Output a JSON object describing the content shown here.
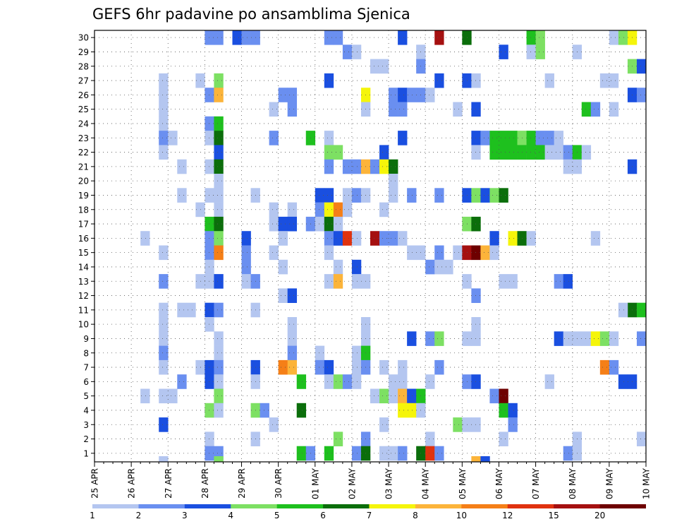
{
  "chart_data": {
    "type": "heatmap",
    "title": "GEFS 6hr padavine po ansamblima Sjenica",
    "xlabel": "",
    "ylabel": "",
    "x_ticks": [
      "25 APR",
      "26 APR",
      "27 APR",
      "28 APR",
      "29 APR",
      "30 APR",
      "01 MAY",
      "02 MAY",
      "03 MAY",
      "04 MAY",
      "05 MAY",
      "06 MAY",
      "07 MAY",
      "08 MAY",
      "09 MAY",
      "10 MAY"
    ],
    "x_range_6h_steps": [
      0,
      60
    ],
    "y_ticks": [
      1,
      2,
      3,
      4,
      5,
      6,
      7,
      8,
      9,
      10,
      11,
      12,
      13,
      14,
      15,
      16,
      17,
      18,
      19,
      20,
      21,
      22,
      23,
      24,
      25,
      26,
      27,
      28,
      29,
      30
    ],
    "y_range": [
      0.5,
      30.5
    ],
    "grid": true,
    "colorbar": {
      "levels": [
        "1",
        "2",
        "3",
        "4",
        "5",
        "6",
        "7",
        "8",
        "10",
        "12",
        "15",
        "20"
      ],
      "colors": [
        "#b4c6f0",
        "#6a8ff0",
        "#1a4fe0",
        "#7de063",
        "#1ec01e",
        "#0b6e0b",
        "#f5f50a",
        "#fcb43a",
        "#f57f17",
        "#e0320f",
        "#a51010",
        "#6e0000"
      ],
      "placement": "bottom"
    },
    "cells": [
      [
        30,
        13,
        2
      ],
      [
        30,
        14,
        2
      ],
      [
        30,
        16,
        3
      ],
      [
        30,
        17,
        2
      ],
      [
        30,
        18,
        2
      ],
      [
        30,
        26,
        2
      ],
      [
        30,
        27,
        2
      ],
      [
        30,
        34,
        3
      ],
      [
        30,
        38,
        11
      ],
      [
        30,
        41,
        6
      ],
      [
        30,
        48,
        5
      ],
      [
        30,
        49,
        4
      ],
      [
        30,
        57,
        1
      ],
      [
        30,
        58,
        4
      ],
      [
        30,
        59,
        7
      ],
      [
        29,
        28,
        2
      ],
      [
        29,
        29,
        1
      ],
      [
        29,
        36,
        1
      ],
      [
        29,
        45,
        3
      ],
      [
        29,
        48,
        1
      ],
      [
        29,
        49,
        4
      ],
      [
        29,
        53,
        1
      ],
      [
        28,
        31,
        1
      ],
      [
        28,
        32,
        1
      ],
      [
        28,
        36,
        2
      ],
      [
        28,
        59,
        4
      ],
      [
        28,
        60,
        3
      ],
      [
        27,
        8,
        1
      ],
      [
        27,
        12,
        1
      ],
      [
        27,
        14,
        4
      ],
      [
        27,
        26,
        3
      ],
      [
        27,
        38,
        3
      ],
      [
        27,
        41,
        3
      ],
      [
        27,
        42,
        1
      ],
      [
        27,
        50,
        1
      ],
      [
        27,
        56,
        1
      ],
      [
        27,
        57,
        1
      ],
      [
        26,
        8,
        1
      ],
      [
        26,
        13,
        2
      ],
      [
        26,
        14,
        8
      ],
      [
        26,
        21,
        2
      ],
      [
        26,
        22,
        2
      ],
      [
        26,
        30,
        7
      ],
      [
        26,
        33,
        2
      ],
      [
        26,
        34,
        3
      ],
      [
        26,
        35,
        2
      ],
      [
        26,
        36,
        2
      ],
      [
        26,
        37,
        1
      ],
      [
        26,
        59,
        3
      ],
      [
        26,
        60,
        2
      ],
      [
        25,
        8,
        1
      ],
      [
        25,
        20,
        1
      ],
      [
        25,
        22,
        2
      ],
      [
        25,
        30,
        1
      ],
      [
        25,
        33,
        2
      ],
      [
        25,
        34,
        2
      ],
      [
        25,
        40,
        1
      ],
      [
        25,
        42,
        3
      ],
      [
        25,
        54,
        5
      ],
      [
        25,
        55,
        2
      ],
      [
        25,
        57,
        1
      ],
      [
        24,
        8,
        1
      ],
      [
        24,
        13,
        2
      ],
      [
        24,
        14,
        5
      ],
      [
        23,
        8,
        2
      ],
      [
        23,
        9,
        1
      ],
      [
        23,
        13,
        1
      ],
      [
        23,
        14,
        6
      ],
      [
        23,
        20,
        2
      ],
      [
        23,
        24,
        5
      ],
      [
        23,
        26,
        1
      ],
      [
        23,
        34,
        3
      ],
      [
        23,
        42,
        3
      ],
      [
        23,
        43,
        2
      ],
      [
        23,
        44,
        5
      ],
      [
        23,
        45,
        5
      ],
      [
        23,
        46,
        5
      ],
      [
        23,
        47,
        4
      ],
      [
        23,
        48,
        5
      ],
      [
        23,
        49,
        2
      ],
      [
        23,
        50,
        2
      ],
      [
        23,
        51,
        1
      ],
      [
        22,
        8,
        1
      ],
      [
        22,
        14,
        3
      ],
      [
        22,
        26,
        4
      ],
      [
        22,
        27,
        4
      ],
      [
        22,
        32,
        3
      ],
      [
        22,
        42,
        1
      ],
      [
        22,
        44,
        5
      ],
      [
        22,
        45,
        5
      ],
      [
        22,
        46,
        5
      ],
      [
        22,
        47,
        5
      ],
      [
        22,
        48,
        5
      ],
      [
        22,
        49,
        5
      ],
      [
        22,
        50,
        1
      ],
      [
        22,
        51,
        1
      ],
      [
        22,
        52,
        2
      ],
      [
        22,
        53,
        5
      ],
      [
        22,
        54,
        1
      ],
      [
        21,
        10,
        1
      ],
      [
        21,
        13,
        1
      ],
      [
        21,
        14,
        6
      ],
      [
        21,
        26,
        2
      ],
      [
        21,
        28,
        2
      ],
      [
        21,
        29,
        2
      ],
      [
        21,
        30,
        8
      ],
      [
        21,
        31,
        2
      ],
      [
        21,
        32,
        7
      ],
      [
        21,
        33,
        6
      ],
      [
        21,
        52,
        1
      ],
      [
        21,
        53,
        1
      ],
      [
        21,
        59,
        3
      ],
      [
        20,
        14,
        1
      ],
      [
        20,
        33,
        1
      ],
      [
        19,
        10,
        1
      ],
      [
        19,
        13,
        1
      ],
      [
        19,
        14,
        1
      ],
      [
        19,
        18,
        1
      ],
      [
        19,
        25,
        3
      ],
      [
        19,
        26,
        3
      ],
      [
        19,
        28,
        1
      ],
      [
        19,
        29,
        2
      ],
      [
        19,
        30,
        1
      ],
      [
        19,
        33,
        1
      ],
      [
        19,
        35,
        2
      ],
      [
        19,
        38,
        2
      ],
      [
        19,
        41,
        3
      ],
      [
        19,
        42,
        4
      ],
      [
        19,
        43,
        3
      ],
      [
        19,
        44,
        4
      ],
      [
        19,
        45,
        6
      ],
      [
        18,
        12,
        1
      ],
      [
        18,
        14,
        1
      ],
      [
        18,
        20,
        1
      ],
      [
        18,
        22,
        1
      ],
      [
        18,
        25,
        2
      ],
      [
        18,
        26,
        7
      ],
      [
        18,
        27,
        9
      ],
      [
        18,
        28,
        1
      ],
      [
        18,
        32,
        1
      ],
      [
        17,
        13,
        5
      ],
      [
        17,
        14,
        6
      ],
      [
        17,
        20,
        1
      ],
      [
        17,
        21,
        3
      ],
      [
        17,
        22,
        3
      ],
      [
        17,
        24,
        2
      ],
      [
        17,
        25,
        1
      ],
      [
        17,
        26,
        6
      ],
      [
        17,
        27,
        1
      ],
      [
        17,
        41,
        4
      ],
      [
        17,
        42,
        6
      ],
      [
        16,
        6,
        1
      ],
      [
        16,
        13,
        2
      ],
      [
        16,
        14,
        4
      ],
      [
        16,
        17,
        3
      ],
      [
        16,
        21,
        1
      ],
      [
        16,
        26,
        2
      ],
      [
        16,
        27,
        3
      ],
      [
        16,
        28,
        10
      ],
      [
        16,
        29,
        1
      ],
      [
        16,
        31,
        11
      ],
      [
        16,
        32,
        2
      ],
      [
        16,
        33,
        2
      ],
      [
        16,
        34,
        1
      ],
      [
        16,
        44,
        3
      ],
      [
        16,
        46,
        7
      ],
      [
        16,
        47,
        6
      ],
      [
        16,
        48,
        1
      ],
      [
        16,
        55,
        1
      ],
      [
        15,
        8,
        1
      ],
      [
        15,
        13,
        2
      ],
      [
        15,
        14,
        9
      ],
      [
        15,
        17,
        2
      ],
      [
        15,
        20,
        1
      ],
      [
        15,
        26,
        1
      ],
      [
        15,
        35,
        1
      ],
      [
        15,
        36,
        1
      ],
      [
        15,
        38,
        2
      ],
      [
        15,
        40,
        1
      ],
      [
        15,
        41,
        11
      ],
      [
        15,
        42,
        12
      ],
      [
        15,
        43,
        8
      ],
      [
        15,
        44,
        1
      ],
      [
        14,
        13,
        1
      ],
      [
        14,
        17,
        2
      ],
      [
        14,
        21,
        1
      ],
      [
        14,
        27,
        1
      ],
      [
        14,
        29,
        3
      ],
      [
        14,
        37,
        2
      ],
      [
        14,
        38,
        1
      ],
      [
        14,
        39,
        1
      ],
      [
        13,
        8,
        2
      ],
      [
        13,
        12,
        1
      ],
      [
        13,
        13,
        1
      ],
      [
        13,
        14,
        3
      ],
      [
        13,
        17,
        1
      ],
      [
        13,
        18,
        2
      ],
      [
        13,
        26,
        1
      ],
      [
        13,
        27,
        8
      ],
      [
        13,
        29,
        1
      ],
      [
        13,
        30,
        1
      ],
      [
        13,
        41,
        1
      ],
      [
        13,
        45,
        1
      ],
      [
        13,
        46,
        1
      ],
      [
        13,
        51,
        2
      ],
      [
        13,
        52,
        3
      ],
      [
        12,
        21,
        1
      ],
      [
        12,
        22,
        3
      ],
      [
        12,
        42,
        2
      ],
      [
        11,
        8,
        1
      ],
      [
        11,
        10,
        1
      ],
      [
        11,
        11,
        1
      ],
      [
        11,
        13,
        3
      ],
      [
        11,
        14,
        2
      ],
      [
        11,
        18,
        1
      ],
      [
        11,
        59,
        6
      ],
      [
        11,
        60,
        5
      ],
      [
        11,
        58,
        1
      ],
      [
        10,
        8,
        1
      ],
      [
        10,
        13,
        1
      ],
      [
        10,
        22,
        1
      ],
      [
        10,
        30,
        1
      ],
      [
        10,
        42,
        1
      ],
      [
        9,
        8,
        1
      ],
      [
        9,
        14,
        1
      ],
      [
        9,
        22,
        1
      ],
      [
        9,
        30,
        1
      ],
      [
        9,
        35,
        3
      ],
      [
        9,
        37,
        2
      ],
      [
        9,
        38,
        4
      ],
      [
        9,
        41,
        1
      ],
      [
        9,
        42,
        1
      ],
      [
        9,
        51,
        3
      ],
      [
        9,
        52,
        1
      ],
      [
        9,
        53,
        1
      ],
      [
        9,
        54,
        1
      ],
      [
        9,
        55,
        7
      ],
      [
        9,
        56,
        4
      ],
      [
        9,
        57,
        1
      ],
      [
        9,
        60,
        2
      ],
      [
        8,
        8,
        2
      ],
      [
        8,
        14,
        1
      ],
      [
        8,
        22,
        2
      ],
      [
        8,
        25,
        1
      ],
      [
        8,
        29,
        1
      ],
      [
        8,
        30,
        5
      ],
      [
        7,
        8,
        1
      ],
      [
        7,
        12,
        1
      ],
      [
        7,
        13,
        3
      ],
      [
        7,
        14,
        2
      ],
      [
        7,
        18,
        3
      ],
      [
        7,
        21,
        9
      ],
      [
        7,
        22,
        8
      ],
      [
        7,
        25,
        2
      ],
      [
        7,
        26,
        3
      ],
      [
        7,
        29,
        1
      ],
      [
        7,
        30,
        2
      ],
      [
        7,
        32,
        1
      ],
      [
        7,
        34,
        1
      ],
      [
        7,
        38,
        2
      ],
      [
        7,
        56,
        9
      ],
      [
        7,
        57,
        2
      ],
      [
        6,
        10,
        2
      ],
      [
        6,
        13,
        3
      ],
      [
        6,
        14,
        1
      ],
      [
        6,
        18,
        1
      ],
      [
        6,
        23,
        5
      ],
      [
        6,
        26,
        1
      ],
      [
        6,
        27,
        4
      ],
      [
        6,
        28,
        2
      ],
      [
        6,
        29,
        1
      ],
      [
        6,
        33,
        1
      ],
      [
        6,
        34,
        1
      ],
      [
        6,
        37,
        1
      ],
      [
        6,
        41,
        2
      ],
      [
        6,
        42,
        3
      ],
      [
        6,
        50,
        1
      ],
      [
        6,
        58,
        3
      ],
      [
        6,
        59,
        3
      ],
      [
        5,
        6,
        1
      ],
      [
        5,
        8,
        1
      ],
      [
        5,
        9,
        1
      ],
      [
        5,
        14,
        4
      ],
      [
        5,
        31,
        1
      ],
      [
        5,
        32,
        4
      ],
      [
        5,
        33,
        1
      ],
      [
        5,
        34,
        8
      ],
      [
        5,
        35,
        3
      ],
      [
        5,
        36,
        5
      ],
      [
        5,
        44,
        2
      ],
      [
        5,
        45,
        12
      ],
      [
        4,
        13,
        4
      ],
      [
        4,
        14,
        1
      ],
      [
        4,
        18,
        4
      ],
      [
        4,
        19,
        2
      ],
      [
        4,
        23,
        6
      ],
      [
        4,
        34,
        7
      ],
      [
        4,
        35,
        7
      ],
      [
        4,
        36,
        1
      ],
      [
        4,
        45,
        5
      ],
      [
        4,
        46,
        3
      ],
      [
        3,
        8,
        3
      ],
      [
        3,
        20,
        1
      ],
      [
        3,
        32,
        1
      ],
      [
        3,
        40,
        4
      ],
      [
        3,
        41,
        1
      ],
      [
        3,
        42,
        1
      ],
      [
        3,
        46,
        2
      ],
      [
        2,
        13,
        1
      ],
      [
        2,
        18,
        1
      ],
      [
        2,
        27,
        4
      ],
      [
        2,
        30,
        2
      ],
      [
        2,
        37,
        1
      ],
      [
        2,
        45,
        1
      ],
      [
        2,
        53,
        1
      ],
      [
        2,
        60,
        1
      ],
      [
        1,
        13,
        2
      ],
      [
        1,
        14,
        2
      ],
      [
        1,
        23,
        5
      ],
      [
        1,
        24,
        2
      ],
      [
        1,
        26,
        5
      ],
      [
        1,
        29,
        2
      ],
      [
        1,
        30,
        6
      ],
      [
        1,
        32,
        1
      ],
      [
        1,
        33,
        1
      ],
      [
        1,
        34,
        2
      ],
      [
        1,
        36,
        6
      ],
      [
        1,
        37,
        10
      ],
      [
        1,
        38,
        2
      ],
      [
        1,
        52,
        2
      ],
      [
        1,
        53,
        1
      ]
    ],
    "bottom_row_marks": [
      [
        8,
        1
      ],
      [
        14,
        4
      ],
      [
        42,
        8
      ],
      [
        43,
        3
      ]
    ]
  }
}
